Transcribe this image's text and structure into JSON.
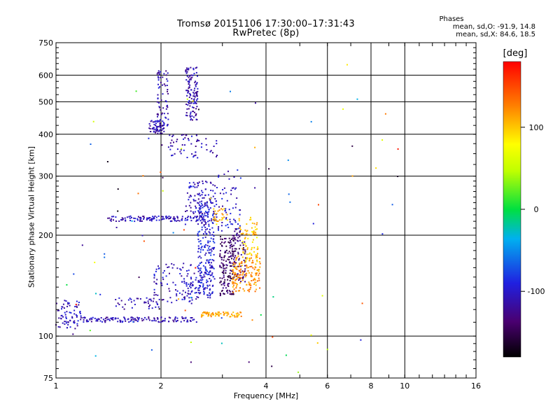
{
  "title_line1": "Tromsø 20151106 17:30:00–17:31:43",
  "title_line2": "RwPretec (8p)",
  "stats": {
    "heading": "Phases",
    "o_mode": "mean, sd,O: -91.9, 14.8",
    "x_mode": "mean, sd,X:  84.6, 18.5"
  },
  "colorbar": {
    "label": "[deg]",
    "ticks": [
      100,
      0,
      -100
    ],
    "range": [
      -180,
      180
    ]
  },
  "chart_data": {
    "type": "scatter",
    "title": "Tromsø 20151106 17:30:00–17:31:43",
    "subtitle": "RwPretec (8p)",
    "xlabel": "Frequency [MHz]",
    "ylabel": "Stationary phase Virtual Height [km]",
    "xscale": "log",
    "yscale": "log",
    "xlim": [
      1,
      16
    ],
    "ylim": [
      75,
      750
    ],
    "xticks": [
      1,
      2,
      4,
      6,
      8,
      10,
      16
    ],
    "yticks": [
      75,
      100,
      200,
      300,
      400,
      500,
      600,
      750
    ],
    "grid": true,
    "colorbar_placement": "right",
    "clusters": [
      {
        "x": [
          1.0,
          1.18
        ],
        "y": [
          105,
          128
        ],
        "phase": -105,
        "n": 70
      },
      {
        "x": [
          1.18,
          2.55
        ],
        "y": [
          110,
          114
        ],
        "phase": -110,
        "n": 140
      },
      {
        "x": [
          1.45,
          2.0
        ],
        "y": [
          120,
          130
        ],
        "phase": -110,
        "n": 40
      },
      {
        "x": [
          1.9,
          2.6
        ],
        "y": [
          125,
          165
        ],
        "phase": -105,
        "n": 90
      },
      {
        "x": [
          2.3,
          2.7
        ],
        "y": [
          128,
          150
        ],
        "phase": -100,
        "n": 40
      },
      {
        "x": [
          1.4,
          2.45
        ],
        "y": [
          220,
          228
        ],
        "phase": -108,
        "n": 110
      },
      {
        "x": [
          2.35,
          2.9
        ],
        "y": [
          215,
          290
        ],
        "phase": -105,
        "n": 130
      },
      {
        "x": [
          2.55,
          2.85
        ],
        "y": [
          130,
          250
        ],
        "phase": -95,
        "n": 230
      },
      {
        "x": [
          2.9,
          3.4
        ],
        "y": [
          200,
          320
        ],
        "phase": -100,
        "n": 60
      },
      {
        "x": [
          2.8,
          3.1
        ],
        "y": [
          220,
          240
        ],
        "phase": 110,
        "n": 25
      },
      {
        "x": [
          2.95,
          3.25
        ],
        "y": [
          132,
          200
        ],
        "phase": -140,
        "n": 150
      },
      {
        "x": [
          3.2,
          3.5
        ],
        "y": [
          145,
          210
        ],
        "phase": -135,
        "n": 80
      },
      {
        "x": [
          3.35,
          3.8
        ],
        "y": [
          200,
          225
        ],
        "phase": 105,
        "n": 30
      },
      {
        "x": [
          2.6,
          3.4
        ],
        "y": [
          114,
          118
        ],
        "phase": 110,
        "n": 70
      },
      {
        "x": [
          3.2,
          3.85
        ],
        "y": [
          135,
          175
        ],
        "phase": 120,
        "n": 150
      },
      {
        "x": [
          3.4,
          3.8
        ],
        "y": [
          165,
          205
        ],
        "phase": 95,
        "n": 40
      },
      {
        "x": [
          2.1,
          2.9
        ],
        "y": [
          340,
          400
        ],
        "phase": -108,
        "n": 60
      },
      {
        "x": [
          1.85,
          2.05
        ],
        "y": [
          400,
          440
        ],
        "phase": -110,
        "n": 60
      },
      {
        "x": [
          1.95,
          2.1
        ],
        "y": [
          420,
          620
        ],
        "phase": -112,
        "n": 70
      },
      {
        "x": [
          2.35,
          2.55
        ],
        "y": [
          440,
          640
        ],
        "phase": -112,
        "n": 120
      },
      {
        "x": [
          1.05,
          9.9
        ],
        "y": [
          78,
          660
        ],
        "phase": -20,
        "n": 90
      }
    ]
  }
}
